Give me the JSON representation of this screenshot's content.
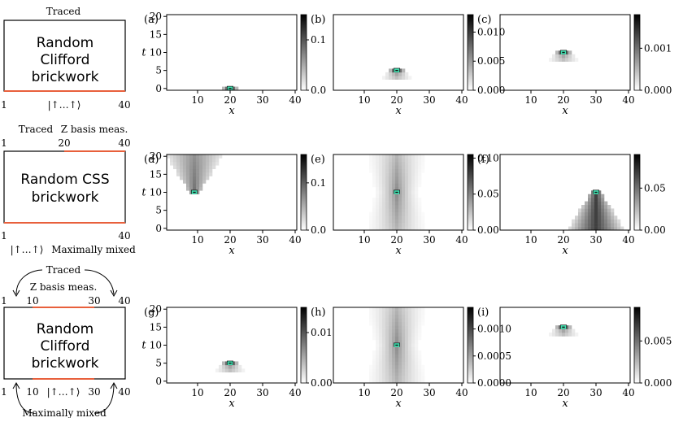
{
  "schematics": [
    {
      "box_lines": [
        "Random",
        "Clifford",
        "brickwork"
      ],
      "top_labels": [
        "Traced"
      ],
      "top_ticks": [],
      "bottom_ticks": [
        "1",
        "40"
      ],
      "bottom_state": "|↑…↑⟩",
      "bottom_note": ""
    },
    {
      "box_lines": [
        "Random CSS",
        "brickwork"
      ],
      "top_labels": [
        "Traced",
        "Z basis meas."
      ],
      "top_ticks": [
        "1",
        "20",
        "40"
      ],
      "bottom_ticks": [
        "1",
        "40"
      ],
      "bottom_state": "|↑…↑⟩",
      "bottom_note": "Maximally mixed"
    },
    {
      "box_lines": [
        "Random",
        "Clifford",
        "brickwork"
      ],
      "top_labels": [
        "Traced",
        "Z basis meas."
      ],
      "top_ticks": [
        "1",
        "10",
        "30",
        "40"
      ],
      "bottom_ticks": [
        "1",
        "10",
        "30",
        "40"
      ],
      "bottom_state": "|↑…↑⟩",
      "bottom_note": "Maximally mixed"
    }
  ],
  "colors": {
    "accent_line": "#e8603c",
    "marker": "#40e0b0"
  },
  "chart_data": [
    {
      "panel": "(a)",
      "type": "heatmap",
      "x_center": 20,
      "t_peak": 0,
      "shape": "point",
      "xlabel": "x",
      "ylabel": "t",
      "xticks": [
        "10",
        "20",
        "30",
        "40"
      ],
      "yticks": [
        "0",
        "5",
        "10",
        "15",
        "20"
      ],
      "cbar_ticks": [
        "0.0",
        "0.1"
      ],
      "cbar_max": 0.15
    },
    {
      "panel": "(b)",
      "type": "heatmap",
      "x_center": 20,
      "t_peak": 5,
      "shape": "point",
      "xlabel": "x",
      "ylabel": "",
      "xticks": [
        "10",
        "20",
        "30",
        "40"
      ],
      "yticks": [],
      "cbar_ticks": [
        "0.000",
        "0.005",
        "0.010"
      ],
      "cbar_max": 0.013
    },
    {
      "panel": "(c)",
      "type": "heatmap",
      "x_center": 20,
      "t_peak": 10,
      "shape": "point",
      "xlabel": "x",
      "ylabel": "",
      "xticks": [
        "10",
        "20",
        "30",
        "40"
      ],
      "yticks": [],
      "cbar_ticks": [
        "0.000",
        "0.001"
      ],
      "cbar_max": 0.0018
    },
    {
      "panel": "(d)",
      "type": "heatmap",
      "x_center": 9,
      "t_peak": 10,
      "shape": "cone_up",
      "xlabel": "x",
      "ylabel": "t",
      "xticks": [
        "10",
        "20",
        "30",
        "40"
      ],
      "yticks": [
        "0",
        "5",
        "10",
        "15",
        "20"
      ],
      "cbar_ticks": [
        "0.0",
        "0.1"
      ],
      "cbar_max": 0.16
    },
    {
      "panel": "(e)",
      "type": "heatmap",
      "x_center": 20,
      "t_peak": 10,
      "shape": "column",
      "xlabel": "x",
      "ylabel": "",
      "xticks": [
        "10",
        "20",
        "30",
        "40"
      ],
      "yticks": [],
      "cbar_ticks": [
        "0.00",
        "0.05",
        "0.10"
      ],
      "cbar_max": 0.105
    },
    {
      "panel": "(f)",
      "type": "heatmap",
      "x_center": 30,
      "t_peak": 10,
      "shape": "cone_down",
      "xlabel": "x",
      "ylabel": "",
      "xticks": [
        "10",
        "20",
        "30",
        "40"
      ],
      "yticks": [],
      "cbar_ticks": [
        "0.00",
        "0.05"
      ],
      "cbar_max": 0.09
    },
    {
      "panel": "(g)",
      "type": "heatmap",
      "x_center": 20,
      "t_peak": 5,
      "shape": "point",
      "xlabel": "x",
      "ylabel": "t",
      "xticks": [
        "10",
        "20",
        "30",
        "40"
      ],
      "yticks": [
        "0",
        "5",
        "10",
        "15",
        "20"
      ],
      "cbar_ticks": [
        "0.00",
        "0.01"
      ],
      "cbar_max": 0.015
    },
    {
      "panel": "(h)",
      "type": "heatmap",
      "x_center": 20,
      "t_peak": 10,
      "shape": "column",
      "xlabel": "x",
      "ylabel": "",
      "xticks": [
        "10",
        "20",
        "30",
        "40"
      ],
      "yticks": [],
      "cbar_ticks": [
        "0.0000",
        "0.0005",
        "0.0010"
      ],
      "cbar_max": 0.0014
    },
    {
      "panel": "(i)",
      "type": "heatmap",
      "x_center": 20,
      "t_peak": 15,
      "shape": "point",
      "xlabel": "x",
      "ylabel": "",
      "xticks": [
        "10",
        "20",
        "30",
        "40"
      ],
      "yticks": [],
      "cbar_ticks": [
        "0.000",
        "0.005"
      ],
      "cbar_max": 0.009
    }
  ]
}
